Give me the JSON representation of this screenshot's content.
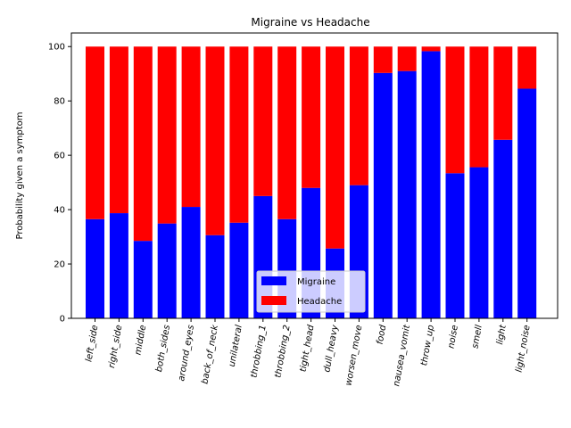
{
  "chart_data": {
    "type": "bar",
    "stacked": true,
    "title": "Migraine vs Headache",
    "xlabel": "",
    "ylabel": "Probability given a symptom",
    "ylim": [
      0,
      105
    ],
    "yticks": [
      0,
      20,
      40,
      60,
      80,
      100
    ],
    "grid": false,
    "legend_position": "bottom-center",
    "categories": [
      "left_side",
      "right_side",
      "middle",
      "both_sides",
      "around_eyes",
      "back_of_neck",
      "unilateral",
      "throbbing_1",
      "throbbing_2",
      "tight_head",
      "dull_heavy",
      "worsen_move",
      "food",
      "nausea_vomit",
      "throw_up",
      "noise",
      "smell",
      "light",
      "light_noise"
    ],
    "series": [
      {
        "name": "Migraine",
        "color": "#0000ff",
        "values": [
          36.5,
          38.7,
          28.5,
          34.9,
          41.0,
          30.6,
          35.2,
          45.0,
          36.5,
          48.0,
          25.7,
          49.0,
          90.3,
          91.0,
          98.3,
          53.4,
          55.6,
          65.7,
          84.5
        ]
      },
      {
        "name": "Headache",
        "color": "#ff0000",
        "values": [
          63.5,
          61.3,
          71.5,
          65.1,
          59.0,
          69.4,
          64.8,
          55.0,
          63.5,
          52.0,
          74.3,
          51.0,
          9.7,
          9.0,
          1.7,
          46.6,
          44.4,
          34.3,
          15.5
        ]
      }
    ]
  }
}
